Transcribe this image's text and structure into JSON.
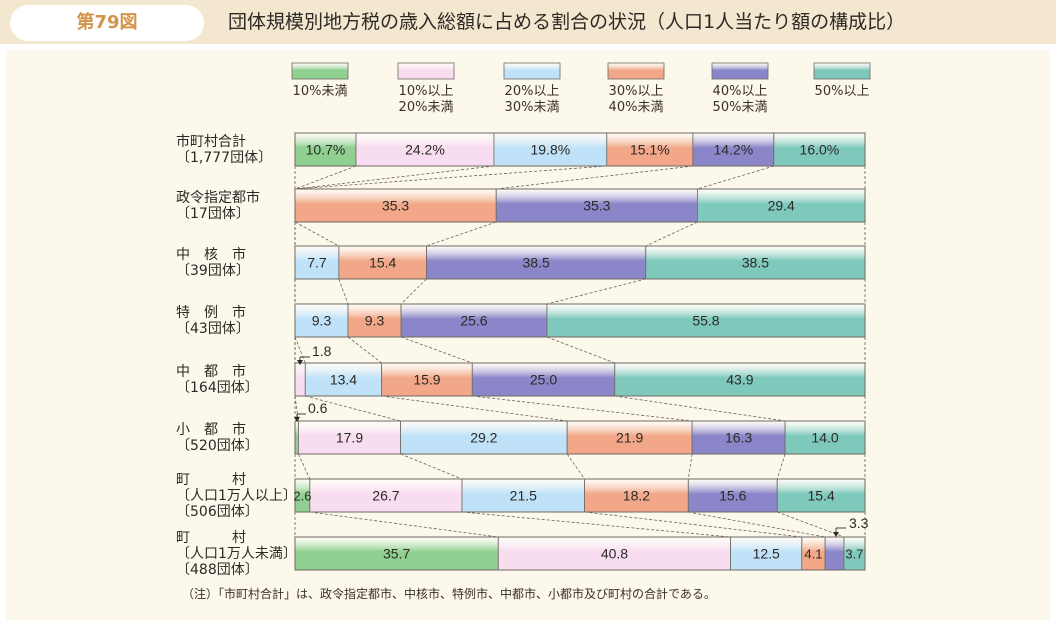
{
  "header": {
    "figure_label": "第79図",
    "title": "団体規模別地方税の歳入総額に占める割合の状況（人口1人当たり額の構成比）"
  },
  "note": "（注）「市町村合計」は、政令指定都市、中核市、特例市、中都市、小都市及び町村の合計である。",
  "colors": [
    "#8fcf8f",
    "#f8dcef",
    "#bfe2f8",
    "#f2a888",
    "#8b86c9",
    "#7fc9bc"
  ],
  "chart_data": {
    "type": "bar",
    "orientation": "horizontal",
    "stacked": true,
    "normalized": "percent",
    "legend": [
      "10%未満",
      "10%以上\n20%未満",
      "20%以上\n30%未満",
      "30%以上\n40%未満",
      "40%以上\n50%未満",
      "50%以上"
    ],
    "categories": [
      {
        "lines": [
          "市町村合計",
          "〔1,777団体〕"
        ],
        "values": [
          10.7,
          24.2,
          19.8,
          15.1,
          14.2,
          16.0
        ],
        "labels": [
          "10.7%",
          "24.2%",
          "19.8%",
          "15.1%",
          "14.2%",
          "16.0%"
        ]
      },
      {
        "lines": [
          "政令指定都市",
          "〔17団体〕"
        ],
        "values": [
          0,
          0,
          0,
          35.3,
          35.3,
          29.4
        ],
        "labels": [
          "",
          "",
          "",
          "35.3",
          "35.3",
          "29.4"
        ]
      },
      {
        "lines": [
          "中　核　市",
          "〔39団体〕"
        ],
        "values": [
          0,
          0,
          7.7,
          15.4,
          38.5,
          38.5
        ],
        "labels": [
          "",
          "",
          "7.7",
          "15.4",
          "38.5",
          "38.5"
        ]
      },
      {
        "lines": [
          "特　例　市",
          "〔43団体〕"
        ],
        "values": [
          0,
          0,
          9.3,
          9.3,
          25.6,
          55.8
        ],
        "labels": [
          "",
          "",
          "9.3",
          "9.3",
          "25.6",
          "55.8"
        ]
      },
      {
        "lines": [
          "中　都　市",
          "〔164団体〕"
        ],
        "values": [
          0,
          1.8,
          13.4,
          15.9,
          25.0,
          43.9
        ],
        "labels": [
          "",
          "1.8",
          "13.4",
          "15.9",
          "25.0",
          "43.9"
        ]
      },
      {
        "lines": [
          "小　都　市",
          "〔520団体〕"
        ],
        "values": [
          0.6,
          17.9,
          29.2,
          21.9,
          16.3,
          14.0
        ],
        "labels": [
          "0.6",
          "17.9",
          "29.2",
          "21.9",
          "16.3",
          "14.0"
        ]
      },
      {
        "lines": [
          "町　　　村",
          "〔人口1万人以上〕",
          "〔506団体〕"
        ],
        "values": [
          2.6,
          26.7,
          21.5,
          18.2,
          15.6,
          15.4
        ],
        "labels": [
          "2.6",
          "26.7",
          "21.5",
          "18.2",
          "15.6",
          "15.4"
        ]
      },
      {
        "lines": [
          "町　　　村",
          "〔人口1万人未満〕",
          "〔488団体〕"
        ],
        "values": [
          35.7,
          40.8,
          12.5,
          4.1,
          3.3,
          3.7
        ],
        "labels": [
          "35.7",
          "40.8",
          "12.5",
          "4.1",
          "3.3",
          "3.7"
        ]
      }
    ]
  }
}
